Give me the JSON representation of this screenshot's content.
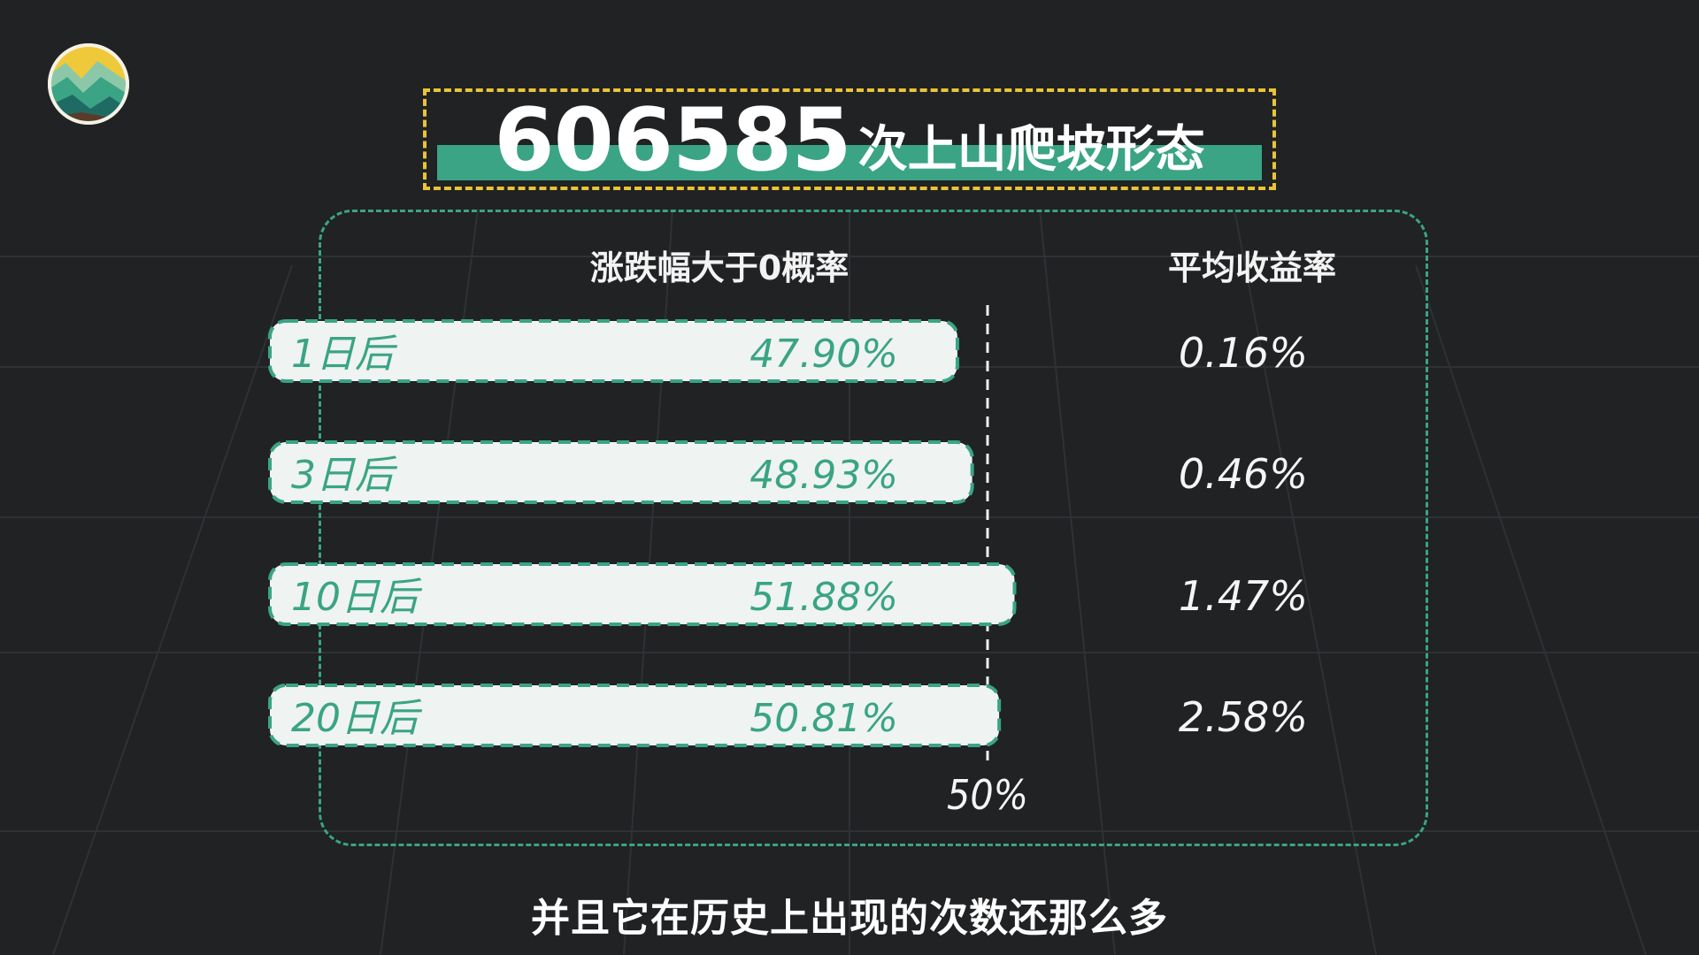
{
  "title": {
    "code": "606585",
    "suffix": "次上山爬坡形态"
  },
  "columns": {
    "probability": "涨跌幅大于0概率",
    "return": "平均收益率"
  },
  "subtitle": "并且它在历史上出现的次数还那么多",
  "colors": {
    "background": "#202224",
    "accent": "#3aa484",
    "title_border": "#e9c437",
    "bar_fill": "#eff3f2",
    "text": "#ffffff"
  },
  "icons": {
    "logo": "mountain-logo-icon"
  },
  "chart_data": {
    "type": "bar",
    "orientation": "horizontal",
    "categories": [
      "1日后",
      "3日后",
      "10日后",
      "20日后"
    ],
    "series": [
      {
        "values": [
          47.9,
          48.93,
          51.88,
          50.81
        ],
        "labels": [
          "47.90%",
          "48.93%",
          "51.88%",
          "50.81%"
        ]
      }
    ],
    "returns": {
      "values": [
        0.16,
        0.46,
        1.47,
        2.58
      ],
      "labels": [
        "0.16%",
        "0.46%",
        "1.47%",
        "2.58%"
      ]
    },
    "reference_line": {
      "value": 50,
      "label": "50%"
    },
    "xlim": [
      0,
      50
    ]
  }
}
